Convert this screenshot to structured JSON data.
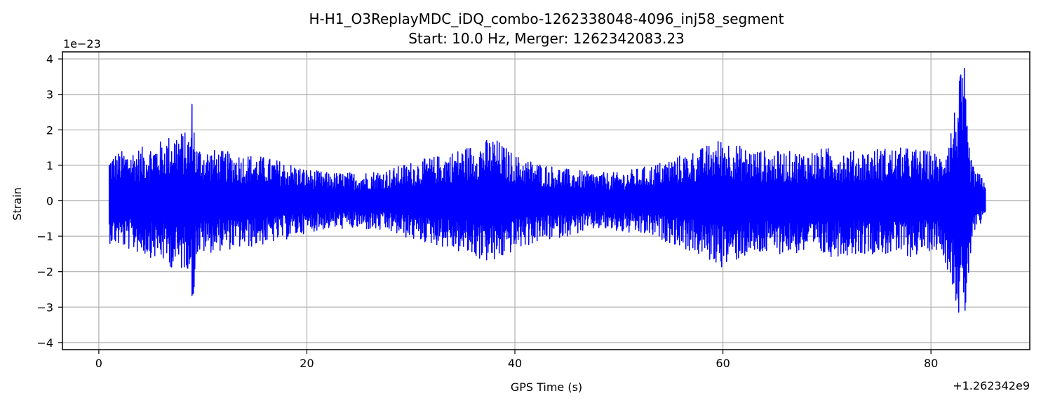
{
  "chart_data": {
    "type": "line",
    "title": "H-H1_O3ReplayMDC_iDQ_combo-1262338048-4096_inj58_segment",
    "subtitle": "Start: 10.0 Hz, Merger: 1262342083.23",
    "xlabel": "GPS Time (s)",
    "ylabel": "Strain",
    "x_offset_text": "+1.262342e9",
    "y_scale_text": "1e−23",
    "xlim": [
      -3.5,
      89.5
    ],
    "ylim": [
      -4.2,
      4.2
    ],
    "x_ticks": [
      0,
      20,
      40,
      60,
      80
    ],
    "x_tick_labels": [
      "0",
      "20",
      "40",
      "60",
      "80"
    ],
    "y_ticks": [
      4,
      3,
      2,
      1,
      0,
      -1,
      -2,
      -3,
      -4
    ],
    "y_tick_labels": [
      "4",
      "3",
      "2",
      "1",
      "0",
      "−1",
      "−2",
      "−3",
      "−4"
    ],
    "grid": true,
    "series": [
      {
        "color": "#0000ff",
        "x_range": [
          1.0,
          85.3
        ],
        "envelope": {
          "x": [
            1.0,
            2.0,
            4.0,
            6.0,
            7.5,
            8.8,
            9.0,
            9.3,
            10.0,
            12.0,
            15.0,
            18.0,
            20.0,
            22.0,
            25.0,
            28.0,
            30.0,
            33.0,
            35.0,
            38.0,
            40.0,
            42.0,
            45.0,
            48.0,
            50.0,
            53.0,
            55.0,
            58.0,
            60.0,
            62.0,
            65.0,
            68.0,
            70.0,
            73.0,
            75.0,
            78.0,
            80.0,
            81.0,
            82.0,
            82.5,
            82.9,
            83.2,
            83.5,
            84.0,
            84.5,
            85.3
          ],
          "upper": [
            1.3,
            1.4,
            1.5,
            1.7,
            2.0,
            1.9,
            3.15,
            1.6,
            1.5,
            1.4,
            1.3,
            1.1,
            0.9,
            0.8,
            0.8,
            0.9,
            1.1,
            1.3,
            1.5,
            1.8,
            1.3,
            1.1,
            0.9,
            0.8,
            0.8,
            1.0,
            1.2,
            1.5,
            1.8,
            1.5,
            1.4,
            1.4,
            1.5,
            1.4,
            1.5,
            1.5,
            1.4,
            1.3,
            2.2,
            3.0,
            3.7,
            3.8,
            2.0,
            1.0,
            0.8,
            0.6
          ],
          "lower": [
            -1.2,
            -1.3,
            -1.5,
            -1.7,
            -2.0,
            -1.9,
            -3.55,
            -1.6,
            -1.5,
            -1.4,
            -1.3,
            -1.1,
            -0.9,
            -0.8,
            -0.8,
            -0.9,
            -1.1,
            -1.3,
            -1.5,
            -1.8,
            -1.4,
            -1.2,
            -1.0,
            -0.8,
            -0.9,
            -1.0,
            -1.2,
            -1.6,
            -1.9,
            -1.6,
            -1.5,
            -1.5,
            -1.6,
            -1.5,
            -1.5,
            -1.6,
            -1.4,
            -1.4,
            -2.3,
            -3.0,
            -3.6,
            -3.8,
            -2.5,
            -1.1,
            -0.8,
            -0.6
          ]
        }
      }
    ]
  }
}
